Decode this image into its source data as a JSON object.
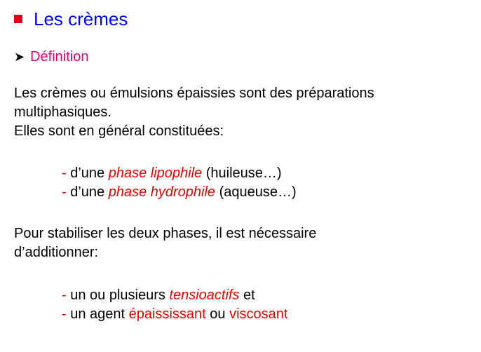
{
  "slide": {
    "title": "Les crèmes",
    "subtitle": "Définition",
    "intro_line1": "Les crèmes ou émulsions épaissies sont des préparations",
    "intro_line2": "multiphasiques.",
    "intro_line3": "Elles sont en général constituées:",
    "list1": [
      {
        "dash": "- ",
        "pre": "d’une ",
        "term": "phase lipophile",
        "post": " (huileuse…)"
      },
      {
        "dash": "- ",
        "pre": "d’une ",
        "term": "phase hydrophile",
        "post": " (aqueuse…)"
      }
    ],
    "stab_line1": "Pour stabiliser les deux phases, il est nécessaire",
    "stab_line2": "d’additionner:",
    "list2": [
      {
        "dash": "- ",
        "pre": "un ou plusieurs ",
        "term": "tensioactifs",
        "post": " et"
      },
      {
        "dash": "- ",
        "pre": "un agent ",
        "term1": "épaississant",
        "mid": " ou ",
        "term2": "viscosant"
      }
    ]
  },
  "colors": {
    "title": "#0000ff",
    "subtitle": "#e0006e",
    "accent_red": "#e60000",
    "bullet": "#e0001a"
  },
  "icons": {
    "title_bullet": "square-bullet",
    "subtitle_bullet": "arrow-bullet"
  }
}
